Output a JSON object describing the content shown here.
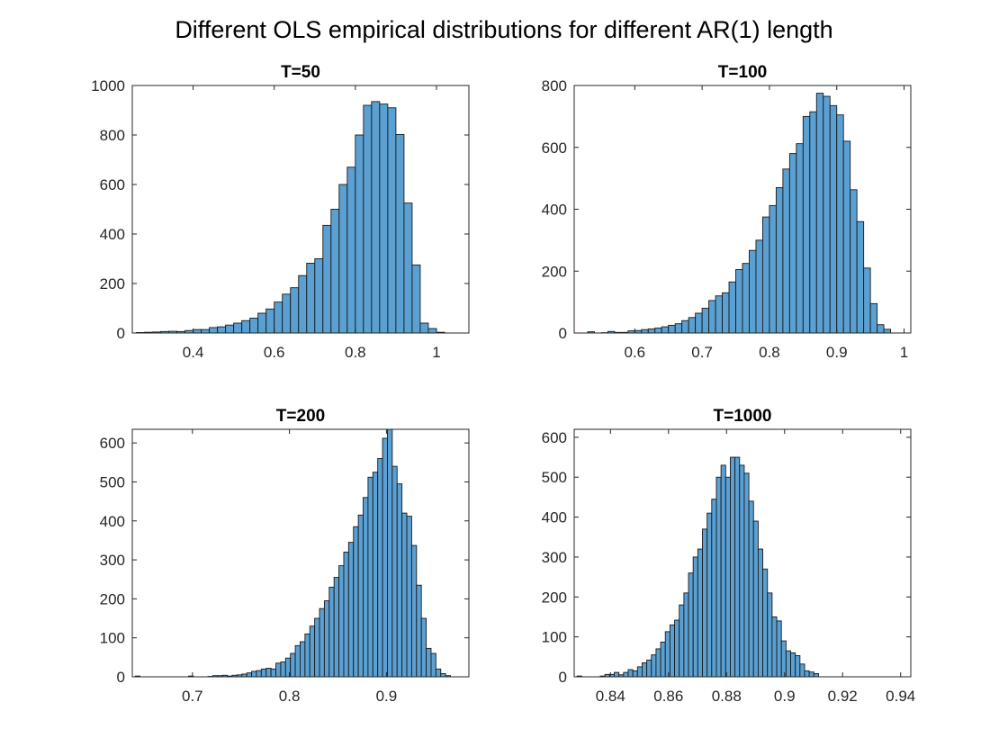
{
  "figure_title": "Different OLS empirical distributions for different AR(1) length",
  "style": {
    "bar_fill": "#5aa0d2",
    "bar_edge": "#1a1a1a",
    "axes_color": "#262626"
  },
  "chart_data": [
    {
      "type": "bar",
      "title": "T=50",
      "xlabel": "",
      "ylabel": "",
      "xlim": [
        0.25,
        1.08
      ],
      "ylim": [
        0,
        1000
      ],
      "xticks": [
        0.4,
        0.6,
        0.8,
        1
      ],
      "xtick_labels": [
        "0.4",
        "0.6",
        "0.8",
        "1"
      ],
      "yticks": [
        0,
        200,
        400,
        600,
        800,
        1000
      ],
      "ytick_labels": [
        "0",
        "200",
        "400",
        "600",
        "800",
        "1000"
      ],
      "bin_start": 0.26,
      "bin_width": 0.02,
      "values": [
        2,
        3,
        4,
        6,
        7,
        6,
        10,
        14,
        14,
        22,
        25,
        32,
        40,
        50,
        60,
        80,
        97,
        125,
        157,
        183,
        232,
        282,
        300,
        435,
        500,
        600,
        670,
        800,
        920,
        935,
        925,
        910,
        802,
        525,
        275,
        40,
        18,
        3
      ]
    },
    {
      "type": "bar",
      "title": "T=100",
      "xlabel": "",
      "ylabel": "",
      "xlim": [
        0.51,
        1.01
      ],
      "ylim": [
        0,
        800
      ],
      "xticks": [
        0.6,
        0.7,
        0.8,
        0.9,
        1
      ],
      "xtick_labels": [
        "0.6",
        "0.7",
        "0.8",
        "0.9",
        "1"
      ],
      "yticks": [
        0,
        200,
        400,
        600,
        800
      ],
      "ytick_labels": [
        "0",
        "200",
        "400",
        "600",
        "800"
      ],
      "bin_start": 0.53,
      "bin_width": 0.01,
      "values": [
        4,
        0,
        1,
        5,
        2,
        2,
        7,
        8,
        11,
        13,
        16,
        20,
        25,
        30,
        40,
        50,
        64,
        80,
        105,
        120,
        130,
        165,
        205,
        225,
        267,
        300,
        375,
        412,
        470,
        530,
        580,
        612,
        700,
        715,
        775,
        765,
        735,
        705,
        620,
        463,
        360,
        210,
        95,
        27,
        12
      ]
    },
    {
      "type": "bar",
      "title": "T=200",
      "xlabel": "",
      "ylabel": "",
      "xlim": [
        0.638,
        0.985
      ],
      "ylim": [
        0,
        635
      ],
      "xticks": [
        0.7,
        0.8,
        0.9
      ],
      "xtick_labels": [
        "0.7",
        "0.8",
        "0.9"
      ],
      "yticks": [
        0,
        100,
        200,
        300,
        400,
        500,
        600
      ],
      "ytick_labels": [
        "0",
        "100",
        "200",
        "300",
        "400",
        "500",
        "600"
      ],
      "bin_start": 0.641,
      "bin_width": 0.005,
      "values": [
        2,
        0,
        0,
        0,
        0,
        0,
        0,
        0,
        0,
        0,
        0,
        2,
        0,
        0,
        0,
        1,
        3,
        3,
        4,
        2,
        4,
        5,
        7,
        10,
        14,
        16,
        20,
        22,
        20,
        35,
        38,
        48,
        60,
        80,
        90,
        110,
        130,
        150,
        175,
        195,
        230,
        255,
        285,
        320,
        345,
        385,
        415,
        460,
        512,
        525,
        560,
        612,
        635,
        540,
        495,
        420,
        412,
        337,
        235,
        150,
        73,
        60,
        20,
        8,
        3
      ]
    },
    {
      "type": "bar",
      "title": "T=1000",
      "xlabel": "",
      "ylabel": "",
      "xlim": [
        0.8275,
        0.9435
      ],
      "ylim": [
        0,
        620
      ],
      "xticks": [
        0.84,
        0.86,
        0.88,
        0.9,
        0.92,
        0.94
      ],
      "xtick_labels": [
        "0.84",
        "0.86",
        "0.88",
        "0.9",
        "0.92",
        "0.94"
      ],
      "yticks": [
        0,
        100,
        200,
        300,
        400,
        500,
        600
      ],
      "ytick_labels": [
        "0",
        "100",
        "200",
        "300",
        "400",
        "500",
        "600"
      ],
      "bin_start": 0.8285,
      "bin_width": 0.0016,
      "values": [
        2,
        0,
        0,
        0,
        0,
        2,
        6,
        6,
        11,
        5,
        11,
        18,
        15,
        25,
        35,
        42,
        55,
        70,
        87,
        113,
        130,
        142,
        180,
        210,
        260,
        300,
        320,
        370,
        410,
        445,
        500,
        530,
        500,
        550,
        550,
        530,
        510,
        440,
        390,
        320,
        270,
        210,
        150,
        140,
        90,
        65,
        60,
        53,
        32,
        15,
        12,
        8
      ]
    }
  ]
}
